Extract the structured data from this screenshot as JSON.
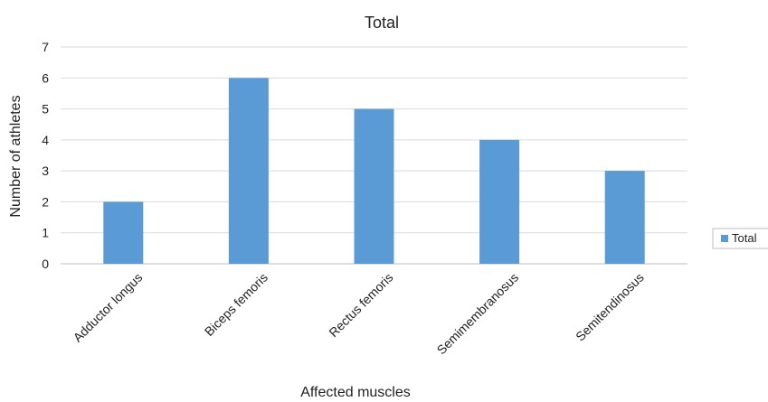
{
  "chart_data": {
    "type": "bar",
    "title": "Total",
    "xlabel": "Affected muscles",
    "ylabel": "Number of athletes",
    "categories": [
      "Adductor longus",
      "Biceps femoris",
      "Rectus femoris",
      "Semimembranosus",
      "Semitendinosus"
    ],
    "series": [
      {
        "name": "Total",
        "values": [
          2,
          6,
          5,
          4,
          3
        ]
      }
    ],
    "ylim": [
      0,
      7
    ],
    "yticks": [
      "0",
      "1",
      "2",
      "3",
      "4",
      "5",
      "6",
      "7"
    ],
    "grid": true,
    "legend": "right",
    "colors": {
      "bar": "#5b9bd5",
      "grid": "#d9d9d9",
      "axis": "#bfbfbf"
    }
  }
}
